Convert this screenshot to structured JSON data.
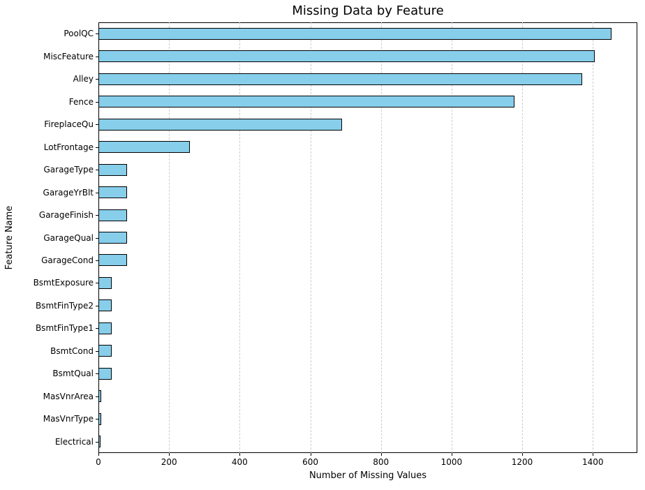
{
  "chart_data": {
    "type": "bar",
    "orientation": "horizontal",
    "title": "Missing Data by Feature",
    "xlabel": "Number of Missing Values",
    "ylabel": "Feature Name",
    "categories": [
      "PoolQC",
      "MiscFeature",
      "Alley",
      "Fence",
      "FireplaceQu",
      "LotFrontage",
      "GarageType",
      "GarageYrBlt",
      "GarageFinish",
      "GarageQual",
      "GarageCond",
      "BsmtExposure",
      "BsmtFinType2",
      "BsmtFinType1",
      "BsmtCond",
      "BsmtQual",
      "MasVnrArea",
      "MasVnrType",
      "Electrical"
    ],
    "values": [
      1453,
      1406,
      1369,
      1179,
      690,
      259,
      81,
      81,
      81,
      81,
      81,
      38,
      38,
      37,
      37,
      37,
      8,
      8,
      1
    ],
    "xticks": [
      0,
      200,
      400,
      600,
      800,
      1000,
      1200,
      1400
    ],
    "xlim": [
      0,
      1526
    ],
    "grid": "vertical-dashed",
    "legend": "none",
    "colors": {
      "bar_fill": "#87CEEB",
      "bar_edge": "#000000",
      "grid": "#cccccc",
      "spine": "#000000",
      "text": "#000000",
      "background": "#ffffff"
    }
  }
}
